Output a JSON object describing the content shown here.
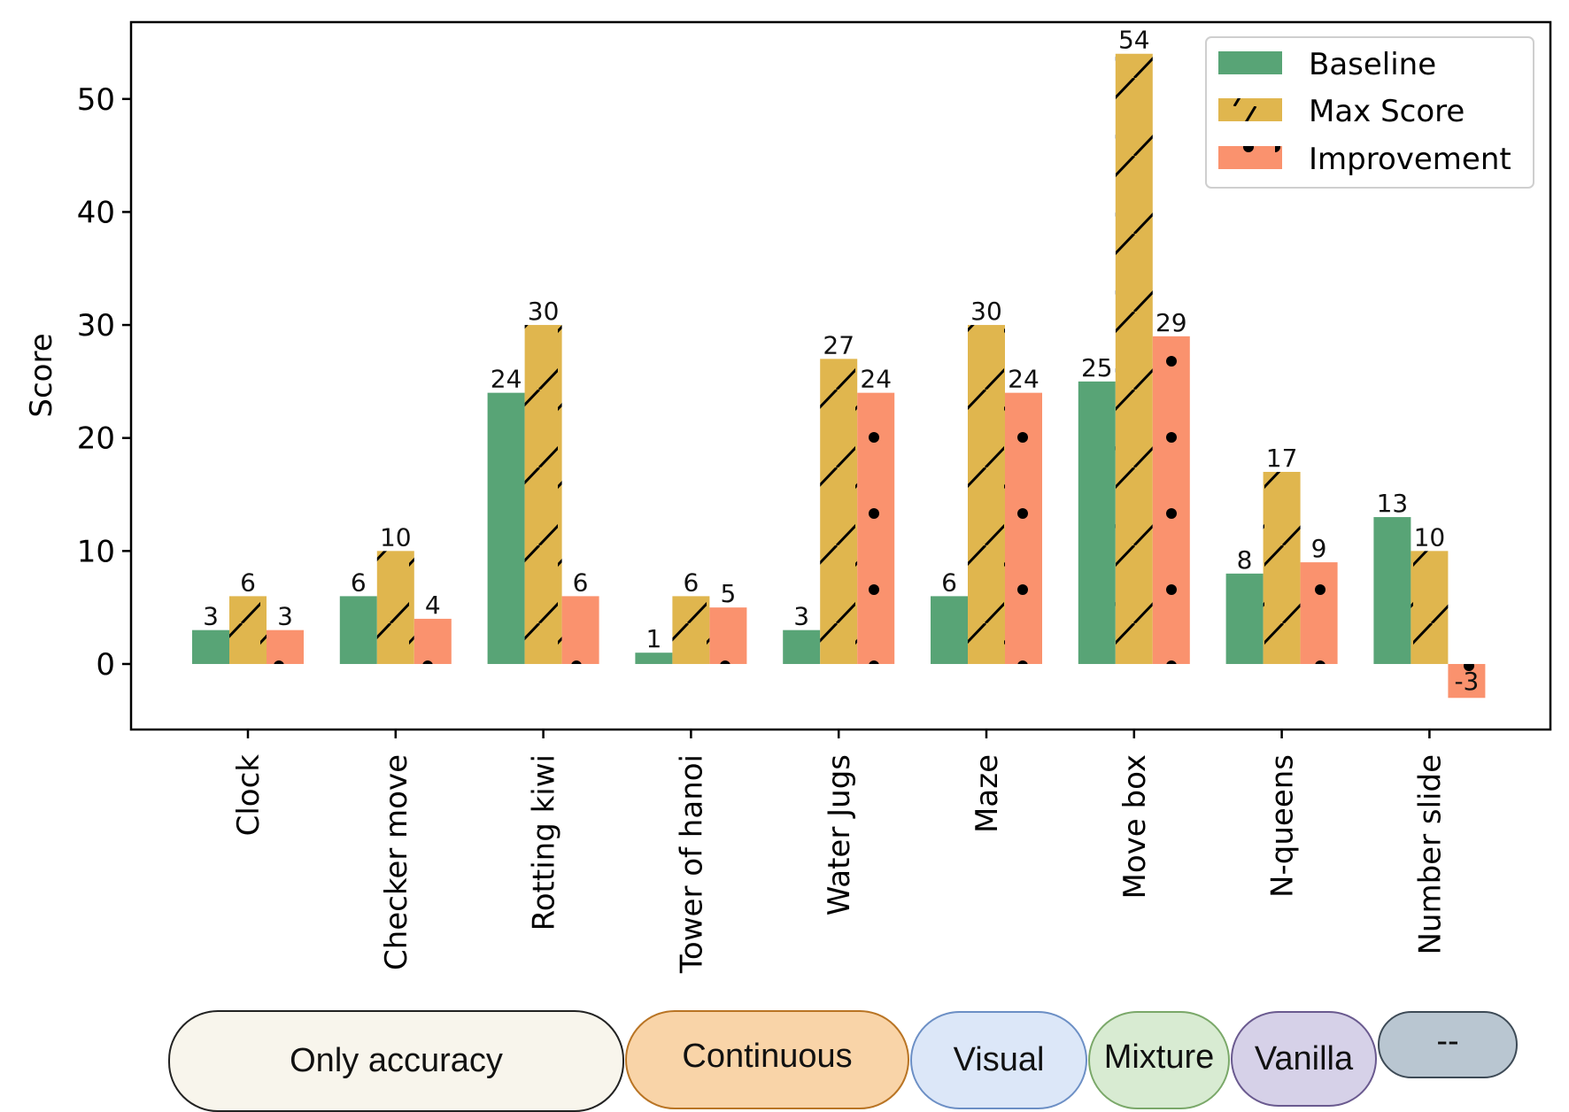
{
  "chart_data": {
    "type": "bar",
    "title": "",
    "xlabel": "",
    "ylabel": "Score",
    "ylim": [
      -5.8,
      56.8
    ],
    "yticks": [
      0,
      10,
      20,
      30,
      40,
      50
    ],
    "grid": false,
    "legend_position": "top-right",
    "categories": [
      "Clock",
      "Checker move",
      "Rotting kiwi",
      "Tower of hanoi",
      "Water Jugs",
      "Maze",
      "Move box",
      "N-queens",
      "Number slide"
    ],
    "series": [
      {
        "name": "Baseline",
        "color": "#58a476",
        "pattern": "solid",
        "values": [
          3,
          6,
          24,
          1,
          3,
          6,
          25,
          8,
          13
        ]
      },
      {
        "name": "Max Score",
        "color": "#e0b64e",
        "pattern": "slash",
        "values": [
          6,
          10,
          30,
          6,
          27,
          30,
          54,
          17,
          10
        ]
      },
      {
        "name": "Improvement",
        "color": "#fa926e",
        "pattern": "dots",
        "values": [
          3,
          4,
          6,
          5,
          24,
          24,
          29,
          9,
          -3
        ]
      }
    ]
  },
  "groups": [
    {
      "label": "Only accuracy",
      "fill": "#f8f5ec",
      "border": "#222222"
    },
    {
      "label": "Continuous",
      "fill": "#f9d4a8",
      "border": "#b97424"
    },
    {
      "label": "Visual",
      "fill": "#dce7f8",
      "border": "#6c8fc5"
    },
    {
      "label": "Mixture",
      "fill": "#d8ebd2",
      "border": "#7aa869"
    },
    {
      "label": "Vanilla",
      "fill": "#d6d1e8",
      "border": "#6a5a8f"
    },
    {
      "label": "--",
      "fill": "#b9c6d1",
      "border": "#3d4a56"
    }
  ]
}
